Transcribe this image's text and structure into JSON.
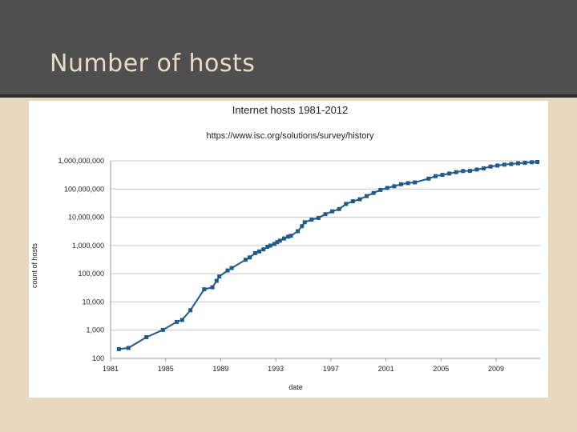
{
  "slide": {
    "title": "Number of hosts"
  },
  "colors": {
    "series": "#1f5a8a",
    "grid": "#c8c8c8",
    "header": "#4f4f4f",
    "background": "#e8d8bf"
  },
  "chart_data": {
    "type": "line",
    "title": "Internet hosts 1981-2012",
    "subtitle": "https://www.isc.org/solutions/survey/history",
    "xlabel": "date",
    "ylabel": "count of hosts",
    "yscale": "log",
    "xlim": [
      1981,
      2012.2
    ],
    "ylim": [
      100,
      1000000000
    ],
    "grid": "horizontal",
    "x_ticks": [
      1981,
      1985,
      1989,
      1993,
      1997,
      2001,
      2005,
      2009
    ],
    "x_tick_labels": [
      "1981",
      "1985",
      "1989",
      "1993",
      "1997",
      "2001",
      "2005",
      "2009"
    ],
    "y_ticks": [
      100,
      1000,
      10000,
      100000,
      1000000,
      10000000,
      100000000,
      1000000000
    ],
    "y_tick_labels": [
      "100",
      "1,000",
      "10,000",
      "100,000",
      "1,000,000",
      "10,000,000",
      "100,000,000",
      "1,000,000,000"
    ],
    "series": [
      {
        "name": "hosts",
        "x": [
          1981.6,
          1982.3,
          1983.6,
          1984.8,
          1985.8,
          1986.2,
          1986.8,
          1987.8,
          1988.4,
          1988.7,
          1988.9,
          1989.5,
          1989.8,
          1990.8,
          1991.1,
          1991.5,
          1991.8,
          1992.1,
          1992.4,
          1992.6,
          1992.9,
          1993.1,
          1993.3,
          1993.6,
          1993.9,
          1994.1,
          1994.6,
          1994.9,
          1995.1,
          1995.6,
          1996.1,
          1996.6,
          1997.1,
          1997.6,
          1998.1,
          1998.6,
          1999.1,
          1999.6,
          2000.1,
          2000.6,
          2001.1,
          2001.6,
          2002.1,
          2002.6,
          2003.1,
          2004.1,
          2004.6,
          2005.1,
          2005.6,
          2006.1,
          2006.6,
          2007.1,
          2007.6,
          2008.1,
          2008.6,
          2009.1,
          2009.6,
          2010.1,
          2010.6,
          2011.1,
          2011.6,
          2012.0
        ],
        "values": [
          213,
          235,
          562,
          1024,
          1961,
          2308,
          5089,
          28174,
          33000,
          56000,
          80000,
          130000,
          159000,
          313000,
          376000,
          535000,
          617000,
          727000,
          900000,
          992000,
          1136000,
          1313000,
          1486000,
          1776000,
          2056000,
          2217000,
          3212000,
          4852000,
          6642000,
          8200000,
          9472000,
          12881000,
          16146000,
          19540000,
          29670000,
          36739000,
          43230000,
          56218000,
          72398000,
          93047000,
          109574000,
          125888000,
          147344000,
          162128000,
          171638000,
          233101000,
          285139000,
          317646000,
          353284000,
          394991000,
          433193000,
          439286000,
          489774000,
          541677000,
          625226000,
          681064000,
          732740000,
          768913000,
          818374000,
          849869000,
          888239000,
          908585000
        ]
      }
    ]
  }
}
